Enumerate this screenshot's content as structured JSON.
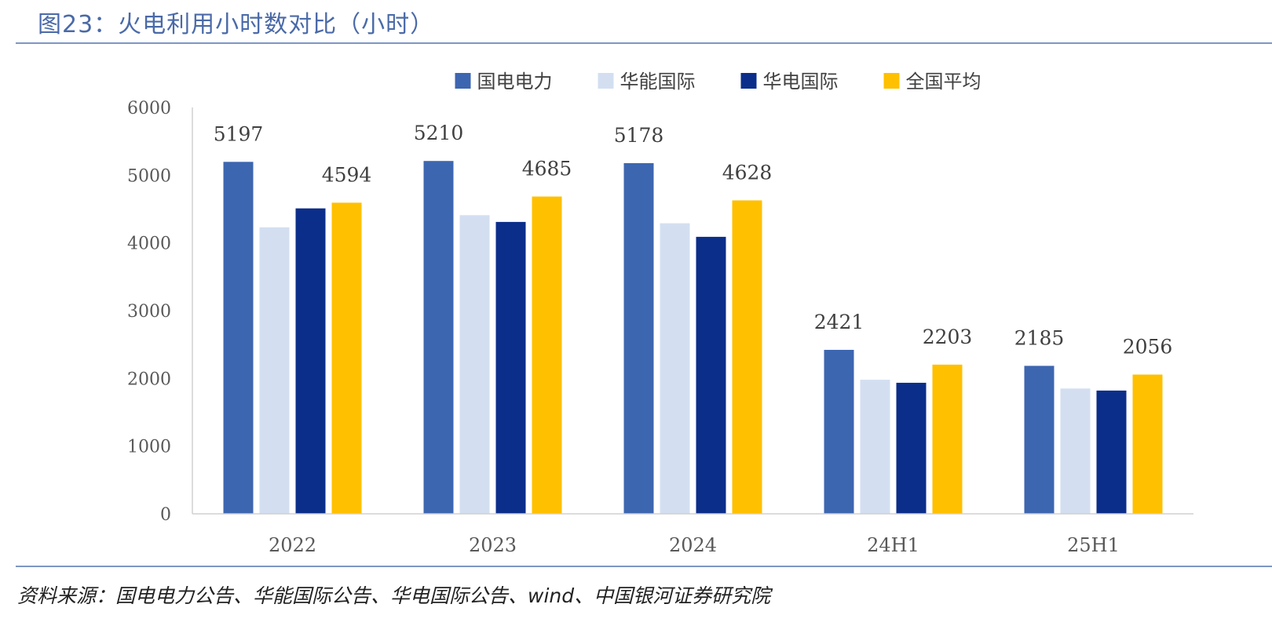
{
  "header": {
    "title": "图23：火电利用小时数对比（小时）"
  },
  "footer": {
    "source": "资料来源：国电电力公告、华能国际公告、华电国际公告、wind、中国银河证券研究院"
  },
  "chart_data": {
    "type": "bar",
    "title": "火电利用小时数对比（小时）",
    "xlabel": "",
    "ylabel": "",
    "ylim": [
      0,
      6000
    ],
    "yticks": [
      0,
      1000,
      2000,
      3000,
      4000,
      5000,
      6000
    ],
    "grid": false,
    "legend_position": "top",
    "categories": [
      "2022",
      "2023",
      "2024",
      "24H1",
      "25H1"
    ],
    "series": [
      {
        "name": "国电电力",
        "color": "#3d66b0",
        "values": [
          5197,
          5210,
          5178,
          2421,
          2185
        ]
      },
      {
        "name": "华能国际",
        "color": "#d3dff1",
        "values": [
          4230,
          4410,
          4290,
          1980,
          1850
        ]
      },
      {
        "name": "华电国际",
        "color": "#0b2e8a",
        "values": [
          4510,
          4310,
          4090,
          1935,
          1820
        ]
      },
      {
        "name": "全国平均",
        "color": "#ffc000",
        "values": [
          4594,
          4685,
          4628,
          2203,
          2056
        ]
      }
    ],
    "data_labels": [
      {
        "series": 0,
        "category": 0,
        "text": "5197"
      },
      {
        "series": 3,
        "category": 0,
        "text": "4594"
      },
      {
        "series": 0,
        "category": 1,
        "text": "5210"
      },
      {
        "series": 3,
        "category": 1,
        "text": "4685"
      },
      {
        "series": 0,
        "category": 2,
        "text": "5178"
      },
      {
        "series": 3,
        "category": 2,
        "text": "4628"
      },
      {
        "series": 0,
        "category": 3,
        "text": "2421"
      },
      {
        "series": 3,
        "category": 3,
        "text": "2203"
      },
      {
        "series": 0,
        "category": 4,
        "text": "2185"
      },
      {
        "series": 3,
        "category": 4,
        "text": "2056"
      }
    ]
  }
}
